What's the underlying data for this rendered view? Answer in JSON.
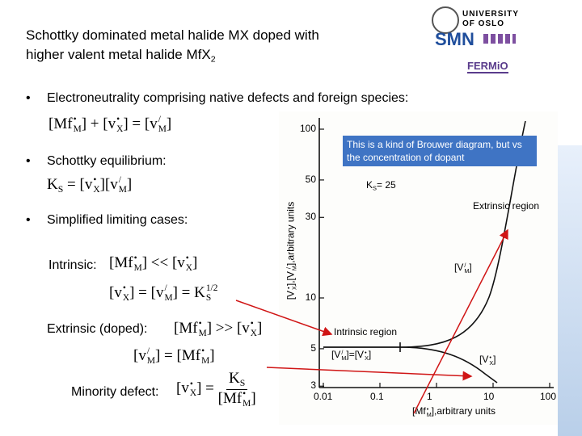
{
  "header": {
    "title_line1": "Schottky dominated metal halide MX doped with",
    "title_line2": [
      "higher valent metal halide Mf",
      {
        "b": "X",
        "sub": "2"
      }
    ],
    "logo_university": "UNIVERSITY",
    "logo_oslo": "OF OSLO",
    "logo_smn": "SMN",
    "logo_fermio": "FERMiO"
  },
  "bullets": [
    "Electroneutrality comprising native defects and foreign species:",
    "Schottky equilibrium:",
    "Simplified limiting cases:"
  ],
  "formulas": {
    "electroneutrality": [
      "[",
      {
        "b": "Mf",
        "sup": "•",
        "sub": "M"
      },
      "] + [",
      {
        "b": "v",
        "sup": "•",
        "sub": "X"
      },
      "] = [",
      {
        "b": "v",
        "sup": "/",
        "sub": "M"
      },
      "]"
    ],
    "schottky": [
      {
        "b": "K",
        "sub": "S"
      },
      " = [",
      {
        "b": "v",
        "sup": "•",
        "sub": "X"
      },
      "][",
      {
        "b": "v",
        "sup": "/",
        "sub": "M"
      },
      "]"
    ],
    "intrinsic_condition": [
      "[",
      {
        "b": "Mf",
        "sup": "•",
        "sub": "M"
      },
      "] << [",
      {
        "b": "v",
        "sup": "•",
        "sub": "X"
      },
      "]"
    ],
    "intrinsic_result": [
      "[",
      {
        "b": "v",
        "sup": "•",
        "sub": "X"
      },
      "] = [",
      {
        "b": "v",
        "sup": "/",
        "sub": "M"
      },
      "] = ",
      {
        "b": "K",
        "sub": "S",
        "sup": "1/2"
      }
    ],
    "extrinsic_condition": [
      "[",
      {
        "b": "Mf",
        "sup": "•",
        "sub": "M"
      },
      "] >> [",
      {
        "b": "v",
        "sup": "•",
        "sub": "X"
      },
      "]"
    ],
    "extrinsic_result": [
      "[",
      {
        "b": "v",
        "sup": "/",
        "sub": "M"
      },
      "] = [",
      {
        "b": "Mf",
        "sup": "•",
        "sub": "M"
      },
      "]"
    ],
    "minority_result": [
      "[",
      {
        "b": "v",
        "sup": "•",
        "sub": "X"
      },
      "] = ",
      {
        "num": [
          {
            "b": "K",
            "sub": "S"
          }
        ],
        "den": [
          "[",
          {
            "b": "Mf",
            "sup": "•",
            "sub": "M"
          },
          "]"
        ]
      }
    ]
  },
  "case_labels": {
    "intrinsic": "Intrinsic:",
    "extrinsic": "Extrinsic (doped):",
    "minority": "Minority defect:"
  },
  "callout": "This is a kind of Brouwer diagram, but vs the concentration of dopant",
  "figure": {
    "yticks": [
      100,
      50,
      30,
      10,
      5,
      3
    ],
    "xticks": [
      0.01,
      0.1,
      1,
      10,
      100
    ],
    "ks_label": [
      {
        "b": "K",
        "sub": "S"
      },
      "= 25"
    ],
    "extrinsic_region": "Extrinsic region",
    "intrinsic_region": "Intrinsic region",
    "vm_label": [
      "[",
      {
        "b": "V",
        "sup": "/",
        "sub": "M"
      },
      "]"
    ],
    "equal_label": [
      "[",
      {
        "b": "V",
        "sup": "/",
        "sub": "M"
      },
      "]=[",
      {
        "b": "V",
        "sup": "•",
        "sub": "X"
      },
      "]"
    ],
    "vx_label": [
      "[",
      {
        "b": "V",
        "sup": "•",
        "sub": "X"
      },
      "]"
    ],
    "x_axis_label": [
      "[",
      {
        "b": "Mf",
        "sup": "•",
        "sub": "M"
      },
      "],arbitrary units"
    ],
    "y_axis_label": [
      "[",
      {
        "b": "V",
        "sup": "•",
        "sub": "X"
      },
      "],[",
      {
        "b": "V",
        "sup": "/",
        "sub": "M"
      },
      "],arbitrary units"
    ]
  }
}
